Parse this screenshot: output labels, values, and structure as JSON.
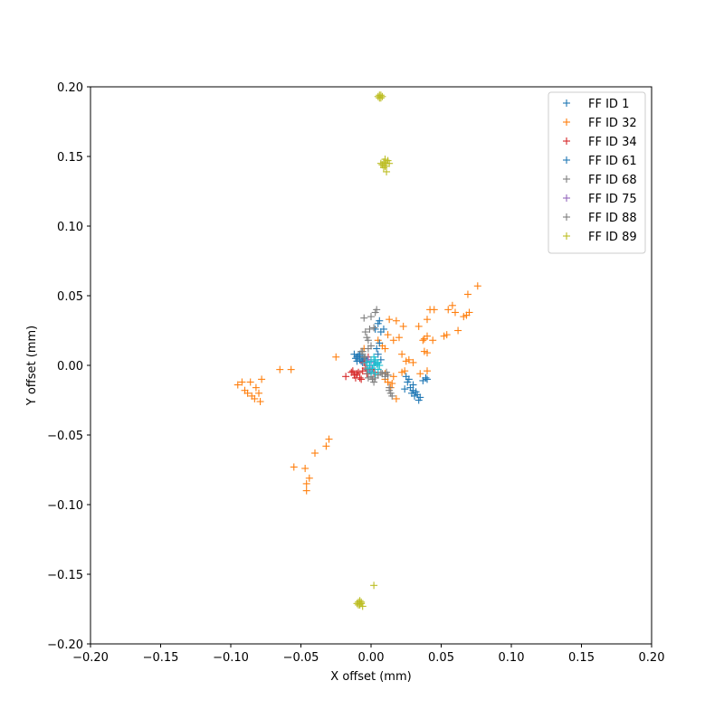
{
  "chart_data": {
    "type": "scatter",
    "marker": "plus",
    "xlabel": "X offset (mm)",
    "ylabel": "Y offset (mm)",
    "xlim": [
      -0.2,
      0.2
    ],
    "ylim": [
      -0.2,
      0.2
    ],
    "x_ticks": [
      "−0.20",
      "−0.15",
      "−0.10",
      "−0.05",
      "0.00",
      "0.05",
      "0.10",
      "0.15",
      "0.20"
    ],
    "y_ticks": [
      "−0.20",
      "−0.15",
      "−0.10",
      "−0.05",
      "0.00",
      "0.05",
      "0.10",
      "0.15",
      "0.20"
    ],
    "grid": false,
    "legend_position": "top-right",
    "series": [
      {
        "name": "FF ID 1",
        "color": "#1f77b4",
        "points": [
          [
            -0.012,
            0.008
          ],
          [
            -0.01,
            0.006
          ],
          [
            -0.008,
            0.004
          ],
          [
            -0.006,
            0.002
          ],
          [
            -0.009,
            0.007
          ],
          [
            -0.011,
            0.005
          ],
          [
            -0.007,
            0.003
          ],
          [
            -0.005,
            0.005
          ],
          [
            -0.004,
            0.002
          ],
          [
            -0.003,
            0.004
          ],
          [
            -0.006,
            0.006
          ],
          [
            -0.008,
            0.008
          ],
          [
            -0.01,
            0.003
          ]
        ]
      },
      {
        "name": "FF ID 32",
        "color": "#ff7f0e",
        "points": [
          [
            -0.095,
            -0.014
          ],
          [
            -0.09,
            -0.018
          ],
          [
            -0.088,
            -0.02
          ],
          [
            -0.085,
            -0.022
          ],
          [
            -0.083,
            -0.024
          ],
          [
            -0.08,
            -0.02
          ],
          [
            -0.079,
            -0.026
          ],
          [
            -0.082,
            -0.016
          ],
          [
            -0.086,
            -0.012
          ],
          [
            -0.092,
            -0.012
          ],
          [
            -0.078,
            -0.01
          ],
          [
            -0.065,
            -0.003
          ],
          [
            -0.057,
            -0.003
          ],
          [
            -0.055,
            -0.073
          ],
          [
            -0.047,
            -0.074
          ],
          [
            -0.046,
            -0.085
          ],
          [
            -0.046,
            -0.09
          ],
          [
            -0.044,
            -0.081
          ],
          [
            -0.04,
            -0.063
          ],
          [
            -0.032,
            -0.058
          ],
          [
            -0.03,
            -0.053
          ],
          [
            -0.025,
            0.006
          ],
          [
            -0.005,
            0.012
          ],
          [
            0.005,
            0.018
          ],
          [
            0.008,
            0.014
          ],
          [
            0.01,
            0.012
          ],
          [
            0.012,
            0.022
          ],
          [
            0.013,
            0.033
          ],
          [
            0.016,
            0.018
          ],
          [
            0.018,
            0.032
          ],
          [
            0.02,
            0.02
          ],
          [
            0.022,
            0.008
          ],
          [
            0.023,
            0.028
          ],
          [
            0.025,
            0.003
          ],
          [
            0.024,
            -0.004
          ],
          [
            0.022,
            -0.005
          ],
          [
            0.027,
            0.004
          ],
          [
            0.03,
            0.002
          ],
          [
            0.034,
            0.028
          ],
          [
            0.035,
            -0.006
          ],
          [
            0.037,
            0.018
          ],
          [
            0.038,
            0.019
          ],
          [
            0.04,
            0.021
          ],
          [
            0.038,
            0.01
          ],
          [
            0.04,
            0.009
          ],
          [
            0.04,
            0.033
          ],
          [
            0.042,
            0.04
          ],
          [
            0.045,
            0.04
          ],
          [
            0.044,
            0.018
          ],
          [
            0.04,
            -0.004
          ],
          [
            0.052,
            0.021
          ],
          [
            0.054,
            0.022
          ],
          [
            0.055,
            0.04
          ],
          [
            0.058,
            0.043
          ],
          [
            0.06,
            0.038
          ],
          [
            0.062,
            0.025
          ],
          [
            0.066,
            0.035
          ],
          [
            0.068,
            0.036
          ],
          [
            0.07,
            0.038
          ],
          [
            0.069,
            0.051
          ],
          [
            0.076,
            0.057
          ],
          [
            0.01,
            -0.01
          ],
          [
            0.012,
            -0.012
          ],
          [
            0.014,
            -0.016
          ],
          [
            0.016,
            -0.008
          ],
          [
            0.018,
            -0.024
          ],
          [
            0.015,
            -0.013
          ],
          [
            0.01,
            -0.006
          ]
        ]
      },
      {
        "name": "FF ID 34",
        "color": "#d62728",
        "points": [
          [
            -0.018,
            -0.008
          ],
          [
            -0.013,
            -0.004
          ],
          [
            -0.012,
            -0.007
          ],
          [
            -0.011,
            -0.009
          ],
          [
            -0.01,
            -0.006
          ],
          [
            -0.009,
            -0.005
          ],
          [
            -0.008,
            -0.009
          ],
          [
            -0.006,
            -0.004
          ],
          [
            -0.005,
            0.002
          ],
          [
            -0.004,
            -0.002
          ],
          [
            -0.003,
            -0.006
          ],
          [
            -0.002,
            0.006
          ],
          [
            0.0,
            -0.003
          ],
          [
            0.002,
            -0.005
          ],
          [
            -0.007,
            -0.01
          ],
          [
            -0.014,
            -0.005
          ]
        ]
      },
      {
        "name": "FF ID 61",
        "color": "#1f77b4",
        "points": [
          [
            0.003,
            0.026
          ],
          [
            0.005,
            0.03
          ],
          [
            0.006,
            0.032
          ],
          [
            0.007,
            0.024
          ],
          [
            0.009,
            0.026
          ],
          [
            0.006,
            0.016
          ],
          [
            0.004,
            0.012
          ],
          [
            0.005,
            0.008
          ],
          [
            0.007,
            0.004
          ],
          [
            0.003,
            0.002
          ],
          [
            0.024,
            -0.017
          ],
          [
            0.026,
            -0.012
          ],
          [
            0.027,
            -0.01
          ],
          [
            0.028,
            -0.016
          ],
          [
            0.029,
            -0.02
          ],
          [
            0.03,
            -0.018
          ],
          [
            0.031,
            -0.022
          ],
          [
            0.032,
            -0.019
          ],
          [
            0.033,
            -0.021
          ],
          [
            0.034,
            -0.025
          ],
          [
            0.035,
            -0.023
          ],
          [
            0.037,
            -0.011
          ],
          [
            0.039,
            -0.009
          ],
          [
            0.04,
            -0.01
          ],
          [
            0.03,
            -0.014
          ],
          [
            0.025,
            -0.008
          ]
        ]
      },
      {
        "name": "FF ID 68",
        "color": "#7f7f7f",
        "points": [
          [
            -0.005,
            0.034
          ],
          [
            -0.004,
            0.024
          ],
          [
            -0.003,
            0.02
          ],
          [
            -0.002,
            0.018
          ],
          [
            -0.001,
            0.026
          ],
          [
            0.0,
            0.035
          ],
          [
            0.002,
            0.027
          ],
          [
            0.003,
            0.038
          ],
          [
            0.004,
            0.04
          ],
          [
            0.0,
            0.014
          ],
          [
            -0.002,
            0.012
          ],
          [
            -0.006,
            0.01
          ],
          [
            -0.004,
            0.006
          ]
        ]
      },
      {
        "name": "FF ID 75",
        "color": "#9467bd",
        "points": [
          [
            -0.004,
            0.002
          ],
          [
            -0.002,
            0.004
          ],
          [
            0.0,
            0.0
          ],
          [
            0.002,
            0.002
          ],
          [
            0.001,
            -0.002
          ],
          [
            -0.001,
            -0.004
          ]
        ]
      },
      {
        "name": "FF ID 88",
        "color": "#7f7f7f",
        "points": [
          [
            -0.007,
            0.01
          ],
          [
            -0.005,
            0.006
          ],
          [
            -0.004,
            0.002
          ],
          [
            -0.003,
            -0.003
          ],
          [
            -0.002,
            -0.006
          ],
          [
            0.0,
            -0.008
          ],
          [
            0.001,
            -0.01
          ],
          [
            0.003,
            -0.009
          ],
          [
            0.005,
            -0.007
          ],
          [
            0.007,
            -0.005
          ],
          [
            0.008,
            -0.006
          ],
          [
            0.01,
            -0.008
          ],
          [
            0.011,
            -0.005
          ],
          [
            0.012,
            -0.007
          ],
          [
            0.013,
            -0.018
          ],
          [
            0.014,
            -0.02
          ],
          [
            0.015,
            -0.022
          ],
          [
            0.013,
            -0.016
          ],
          [
            0.002,
            -0.012
          ],
          [
            -0.002,
            -0.009
          ]
        ]
      },
      {
        "name": "FF ID 89",
        "color": "#bcbd22",
        "points": [
          [
            0.005,
            0.193
          ],
          [
            0.006,
            0.192
          ],
          [
            0.007,
            0.194
          ],
          [
            0.008,
            0.193
          ],
          [
            0.006,
            0.194
          ],
          [
            0.007,
            0.192
          ],
          [
            0.008,
            0.144
          ],
          [
            0.009,
            0.146
          ],
          [
            0.01,
            0.143
          ],
          [
            0.011,
            0.145
          ],
          [
            0.012,
            0.147
          ],
          [
            0.009,
            0.142
          ],
          [
            0.01,
            0.148
          ],
          [
            0.011,
            0.139
          ],
          [
            0.007,
            0.145
          ],
          [
            0.013,
            0.145
          ],
          [
            -0.01,
            -0.171
          ],
          [
            -0.009,
            -0.17
          ],
          [
            -0.008,
            -0.172
          ],
          [
            -0.007,
            -0.17
          ],
          [
            -0.006,
            -0.173
          ],
          [
            -0.009,
            -0.172
          ],
          [
            -0.008,
            -0.169
          ],
          [
            -0.007,
            -0.171
          ],
          [
            0.002,
            -0.158
          ]
        ]
      },
      {
        "name": "",
        "color": "#17becf",
        "points": [
          [
            -0.003,
            0.002
          ],
          [
            -0.001,
            0.0
          ],
          [
            0.0,
            0.003
          ],
          [
            0.001,
            -0.002
          ],
          [
            0.002,
            0.0
          ],
          [
            0.003,
            0.004
          ],
          [
            0.004,
            0.001
          ],
          [
            0.005,
            -0.003
          ],
          [
            0.0,
            -0.005
          ],
          [
            -0.002,
            -0.002
          ],
          [
            0.003,
            -0.006
          ],
          [
            0.005,
            0.002
          ],
          [
            0.006,
            0.0
          ],
          [
            0.002,
            0.006
          ]
        ]
      }
    ]
  }
}
